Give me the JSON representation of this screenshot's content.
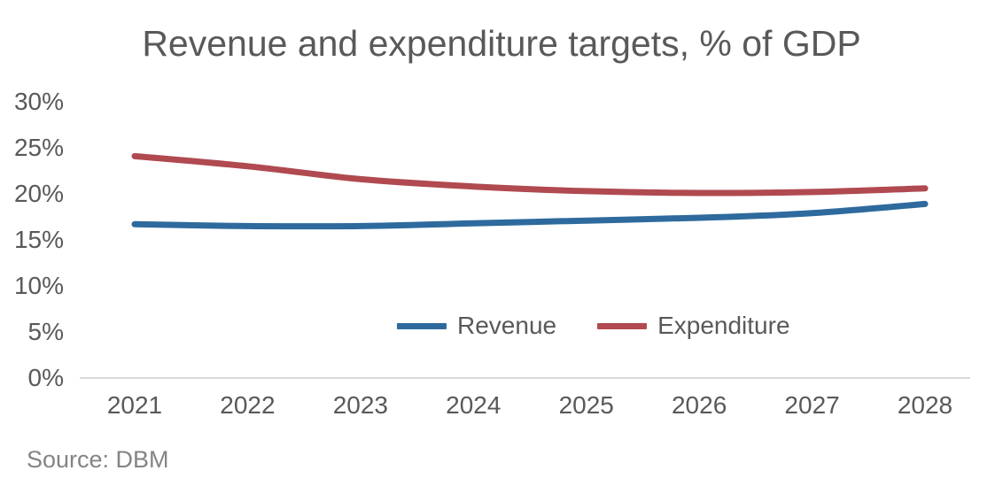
{
  "title": "Revenue and expenditure targets, % of GDP",
  "source_note": "Source: DBM",
  "colors": {
    "revenue": "#2E6A9D",
    "expenditure": "#B04A50",
    "axis_line": "#d9d9d9",
    "text": "#595959",
    "source_text": "#848484"
  },
  "legend": {
    "revenue_label": "Revenue",
    "expenditure_label": "Expenditure"
  },
  "chart_data": {
    "type": "line",
    "title": "Revenue and expenditure targets, % of GDP",
    "categories": [
      "2021",
      "2022",
      "2023",
      "2024",
      "2025",
      "2026",
      "2027",
      "2028"
    ],
    "series": [
      {
        "name": "Revenue",
        "color": "#2E6A9D",
        "values": [
          16.7,
          16.5,
          16.5,
          16.8,
          17.1,
          17.4,
          17.9,
          18.9
        ]
      },
      {
        "name": "Expenditure",
        "color": "#B04A50",
        "values": [
          24.1,
          23.0,
          21.6,
          20.8,
          20.3,
          20.1,
          20.2,
          20.6
        ]
      }
    ],
    "xlabel": "",
    "ylabel": "% of GDP",
    "ylim": [
      0,
      30
    ],
    "ytick_values": [
      0,
      5,
      10,
      15,
      20,
      25,
      30
    ],
    "ytick_labels": [
      "0%",
      "5%",
      "10%",
      "15%",
      "20%",
      "25%",
      "30%"
    ],
    "grid": false,
    "line_style": "smooth",
    "legend_position": "inside-bottom-center"
  }
}
